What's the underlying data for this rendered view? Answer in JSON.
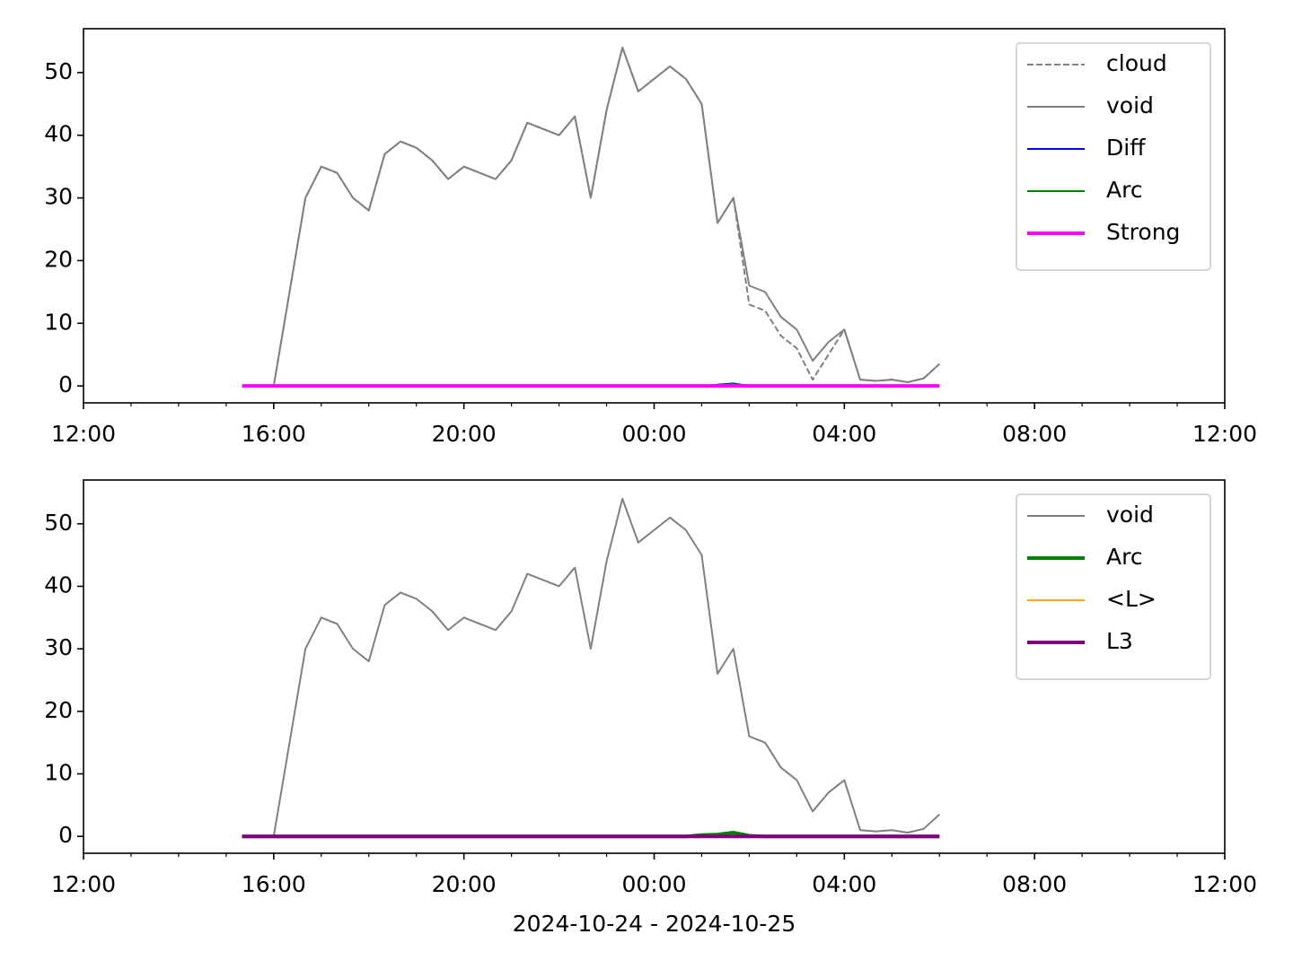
{
  "chart_data": [
    {
      "type": "line",
      "x": [
        "2024-10-24 15:20",
        "2024-10-24 15:40",
        "2024-10-24 16:00",
        "2024-10-24 16:20",
        "2024-10-24 16:40",
        "2024-10-24 17:00",
        "2024-10-24 17:20",
        "2024-10-24 17:40",
        "2024-10-24 18:00",
        "2024-10-24 18:20",
        "2024-10-24 18:40",
        "2024-10-24 19:00",
        "2024-10-24 19:20",
        "2024-10-24 19:40",
        "2024-10-24 20:00",
        "2024-10-24 20:20",
        "2024-10-24 20:40",
        "2024-10-24 21:00",
        "2024-10-24 21:20",
        "2024-10-24 21:40",
        "2024-10-24 22:00",
        "2024-10-24 22:20",
        "2024-10-24 22:40",
        "2024-10-24 23:00",
        "2024-10-24 23:20",
        "2024-10-24 23:40",
        "2024-10-25 00:00",
        "2024-10-25 00:20",
        "2024-10-25 00:40",
        "2024-10-25 01:00",
        "2024-10-25 01:20",
        "2024-10-25 01:40",
        "2024-10-25 02:00",
        "2024-10-25 02:20",
        "2024-10-25 02:40",
        "2024-10-25 03:00",
        "2024-10-25 03:20",
        "2024-10-25 03:40",
        "2024-10-25 04:00",
        "2024-10-25 04:20",
        "2024-10-25 04:40",
        "2024-10-25 05:00",
        "2024-10-25 05:20",
        "2024-10-25 05:40",
        "2024-10-25 06:00"
      ],
      "series": [
        {
          "name": "cloud",
          "color": "#808080",
          "linestyle": "dashed",
          "linewidth": 2,
          "values": [
            0,
            0,
            0,
            15,
            30,
            35,
            34,
            30,
            28,
            37,
            39,
            38,
            36,
            33,
            35,
            34,
            33,
            36,
            42,
            41,
            40,
            43,
            30,
            44,
            54,
            47,
            49,
            51,
            49,
            45,
            26,
            30,
            13,
            12,
            8,
            6,
            1,
            5,
            9,
            1,
            0.8,
            1,
            0.6,
            1.2,
            3.5
          ]
        },
        {
          "name": "void",
          "color": "#808080",
          "linestyle": "solid",
          "linewidth": 2,
          "values": [
            0,
            0,
            0,
            15,
            30,
            35,
            34,
            30,
            28,
            37,
            39,
            38,
            36,
            33,
            35,
            34,
            33,
            36,
            42,
            41,
            40,
            43,
            30,
            44,
            54,
            47,
            49,
            51,
            49,
            45,
            26,
            30,
            16,
            15,
            11,
            9,
            4,
            7,
            9,
            1,
            0.8,
            1,
            0.6,
            1.2,
            3.5
          ]
        },
        {
          "name": "Diff",
          "color": "#0000ff",
          "linestyle": "solid",
          "linewidth": 2,
          "values": [
            0,
            0,
            0,
            0,
            0,
            0,
            0,
            0,
            0,
            0,
            0,
            0,
            0,
            0,
            0,
            0,
            0,
            0,
            0,
            0,
            0,
            0,
            0,
            0,
            0,
            0,
            0,
            0,
            0,
            0,
            0.2,
            0.4,
            0,
            0,
            0,
            0,
            0,
            0,
            0,
            0,
            0,
            0,
            0,
            0,
            0
          ]
        },
        {
          "name": "Arc",
          "color": "#008000",
          "linestyle": "solid",
          "linewidth": 2,
          "values": [
            0,
            0,
            0,
            0,
            0,
            0,
            0,
            0,
            0,
            0,
            0,
            0,
            0,
            0,
            0,
            0,
            0,
            0,
            0,
            0,
            0,
            0,
            0,
            0,
            0,
            0,
            0,
            0,
            0,
            0,
            0.1,
            0.3,
            0,
            0,
            0,
            0,
            0,
            0,
            0,
            0,
            0,
            0,
            0,
            0,
            0
          ]
        },
        {
          "name": "Strong",
          "color": "#ff00ff",
          "linestyle": "solid",
          "linewidth": 4,
          "values": [
            0,
            0,
            0,
            0,
            0,
            0,
            0,
            0,
            0,
            0,
            0,
            0,
            0,
            0,
            0,
            0,
            0,
            0,
            0,
            0,
            0,
            0,
            0,
            0,
            0,
            0,
            0,
            0,
            0,
            0,
            0,
            0,
            0,
            0,
            0,
            0,
            0,
            0,
            0,
            0,
            0,
            0,
            0,
            0,
            0
          ]
        }
      ],
      "xlim": [
        "2024-10-24 12:00",
        "2024-10-25 12:00"
      ],
      "xticks": [
        {
          "value": "2024-10-24 12:00",
          "label": "12:00"
        },
        {
          "value": "2024-10-24 16:00",
          "label": "16:00"
        },
        {
          "value": "2024-10-24 20:00",
          "label": "20:00"
        },
        {
          "value": "2024-10-25 00:00",
          "label": "00:00"
        },
        {
          "value": "2024-10-25 04:00",
          "label": "04:00"
        },
        {
          "value": "2024-10-25 08:00",
          "label": "08:00"
        },
        {
          "value": "2024-10-25 12:00",
          "label": "12:00"
        }
      ],
      "ylim": [
        -2.7,
        57
      ],
      "yticks": [
        0,
        10,
        20,
        30,
        40,
        50
      ],
      "legend": "upper right"
    },
    {
      "type": "line",
      "x": [
        "2024-10-24 15:20",
        "2024-10-24 15:40",
        "2024-10-24 16:00",
        "2024-10-24 16:20",
        "2024-10-24 16:40",
        "2024-10-24 17:00",
        "2024-10-24 17:20",
        "2024-10-24 17:40",
        "2024-10-24 18:00",
        "2024-10-24 18:20",
        "2024-10-24 18:40",
        "2024-10-24 19:00",
        "2024-10-24 19:20",
        "2024-10-24 19:40",
        "2024-10-24 20:00",
        "2024-10-24 20:20",
        "2024-10-24 20:40",
        "2024-10-24 21:00",
        "2024-10-24 21:20",
        "2024-10-24 21:40",
        "2024-10-24 22:00",
        "2024-10-24 22:20",
        "2024-10-24 22:40",
        "2024-10-24 23:00",
        "2024-10-24 23:20",
        "2024-10-24 23:40",
        "2024-10-25 00:00",
        "2024-10-25 00:20",
        "2024-10-25 00:40",
        "2024-10-25 01:00",
        "2024-10-25 01:20",
        "2024-10-25 01:40",
        "2024-10-25 02:00",
        "2024-10-25 02:20",
        "2024-10-25 02:40",
        "2024-10-25 03:00",
        "2024-10-25 03:20",
        "2024-10-25 03:40",
        "2024-10-25 04:00",
        "2024-10-25 04:20",
        "2024-10-25 04:40",
        "2024-10-25 05:00",
        "2024-10-25 05:20",
        "2024-10-25 05:40",
        "2024-10-25 06:00"
      ],
      "series": [
        {
          "name": "void",
          "color": "#808080",
          "linestyle": "solid",
          "linewidth": 2,
          "values": [
            0,
            0,
            0,
            15,
            30,
            35,
            34,
            30,
            28,
            37,
            39,
            38,
            36,
            33,
            35,
            34,
            33,
            36,
            42,
            41,
            40,
            43,
            30,
            44,
            54,
            47,
            49,
            51,
            49,
            45,
            26,
            30,
            16,
            15,
            11,
            9,
            4,
            7,
            9,
            1,
            0.8,
            1,
            0.6,
            1.2,
            3.5
          ]
        },
        {
          "name": "Arc",
          "color": "#008000",
          "linestyle": "solid",
          "linewidth": 4,
          "values": [
            0,
            0,
            0,
            0,
            0,
            0,
            0,
            0,
            0,
            0,
            0,
            0,
            0,
            0,
            0,
            0,
            0,
            0,
            0,
            0,
            0,
            0,
            0,
            0,
            0,
            0,
            0,
            0,
            0,
            0.2,
            0.3,
            0.6,
            0.1,
            0,
            0,
            0,
            0,
            0,
            0,
            0,
            0,
            0,
            0,
            0,
            0
          ]
        },
        {
          "name": "<L>",
          "color": "#ffa500",
          "linestyle": "solid",
          "linewidth": 2,
          "values": [
            0,
            0,
            0,
            0,
            0,
            0,
            0,
            0,
            0,
            0,
            0,
            0,
            0,
            0,
            0,
            0,
            0,
            0,
            0,
            0,
            0,
            0,
            0,
            0,
            0,
            0,
            0,
            0,
            0,
            0,
            0,
            0,
            0,
            0,
            0,
            0,
            0,
            0,
            0,
            0,
            0,
            0,
            0,
            0,
            0
          ]
        },
        {
          "name": "L3",
          "color": "#800080",
          "linestyle": "solid",
          "linewidth": 4,
          "values": [
            0,
            0,
            0,
            0,
            0,
            0,
            0,
            0,
            0,
            0,
            0,
            0,
            0,
            0,
            0,
            0,
            0,
            0,
            0,
            0,
            0,
            0,
            0,
            0,
            0,
            0,
            0,
            0,
            0,
            0,
            0,
            0,
            0,
            0,
            0,
            0,
            0,
            0,
            0,
            0,
            0,
            0,
            0,
            0,
            0
          ]
        }
      ],
      "xlim": [
        "2024-10-24 12:00",
        "2024-10-25 12:00"
      ],
      "xticks": [
        {
          "value": "2024-10-24 12:00",
          "label": "12:00"
        },
        {
          "value": "2024-10-24 16:00",
          "label": "16:00"
        },
        {
          "value": "2024-10-24 20:00",
          "label": "20:00"
        },
        {
          "value": "2024-10-25 00:00",
          "label": "00:00"
        },
        {
          "value": "2024-10-25 04:00",
          "label": "04:00"
        },
        {
          "value": "2024-10-25 08:00",
          "label": "08:00"
        },
        {
          "value": "2024-10-25 12:00",
          "label": "12:00"
        }
      ],
      "ylim": [
        -2.7,
        57
      ],
      "yticks": [
        0,
        10,
        20,
        30,
        40,
        50
      ],
      "legend": "upper right",
      "xlabel": "2024-10-24 - 2024-10-25"
    }
  ]
}
